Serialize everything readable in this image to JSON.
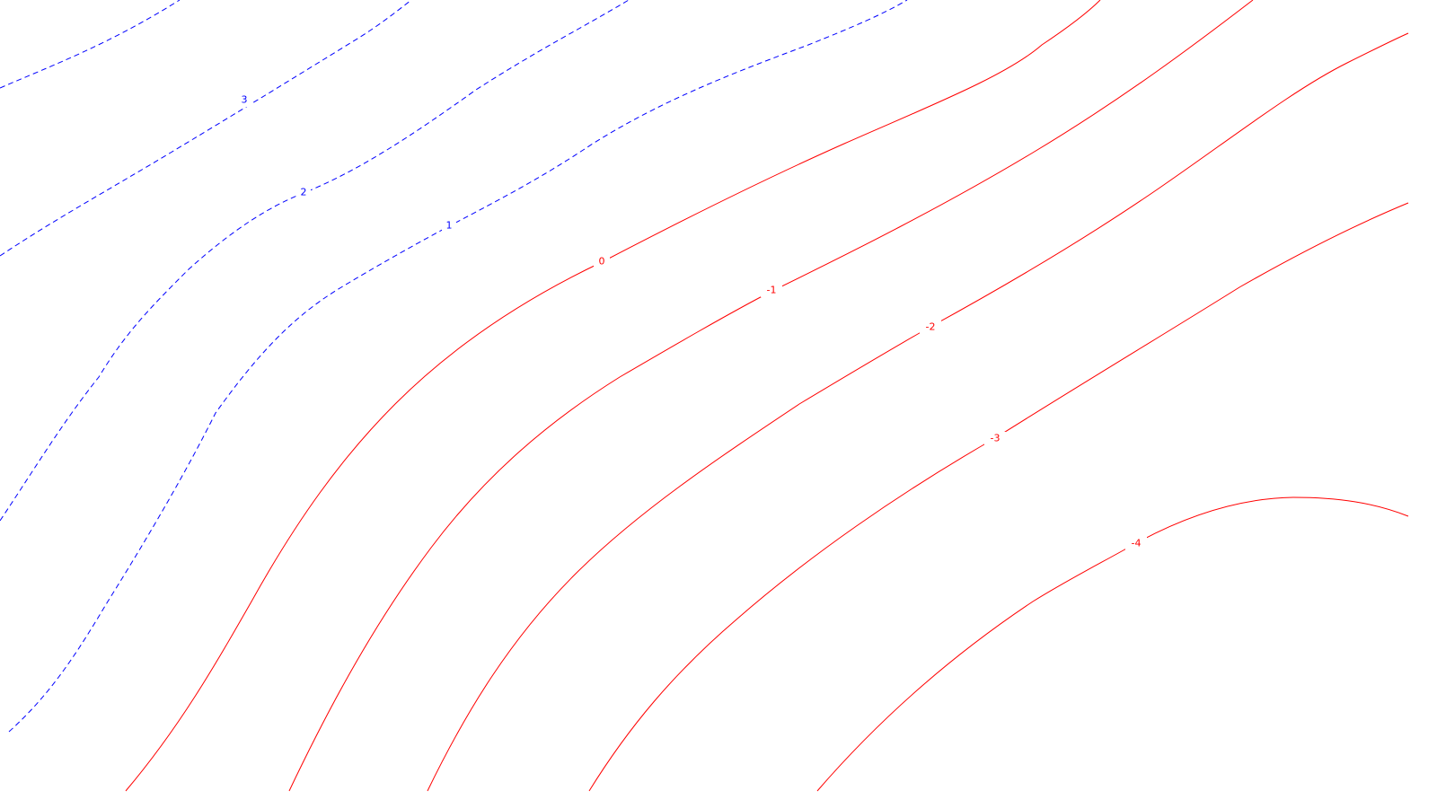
{
  "chart_data": {
    "type": "contour",
    "title": "",
    "xlabel": "",
    "ylabel": "",
    "colors": {
      "positive": "#0000ff",
      "negative": "#ff0000",
      "background": "#ffffff"
    },
    "levels": [
      {
        "value": 3,
        "label": "3",
        "style": "dashed",
        "sign": "positive"
      },
      {
        "value": 2,
        "label": "2",
        "style": "dashed",
        "sign": "positive"
      },
      {
        "value": 1,
        "label": "1",
        "style": "dashed",
        "sign": "positive"
      },
      {
        "value": 0,
        "label": "0",
        "style": "solid",
        "sign": "negative"
      },
      {
        "value": -1,
        "label": "-1",
        "style": "solid",
        "sign": "negative"
      },
      {
        "value": -2,
        "label": "-2",
        "style": "solid",
        "sign": "negative"
      },
      {
        "value": -3,
        "label": "-3",
        "style": "solid",
        "sign": "negative"
      },
      {
        "value": -4,
        "label": "-4",
        "style": "solid",
        "sign": "negative"
      }
    ]
  }
}
